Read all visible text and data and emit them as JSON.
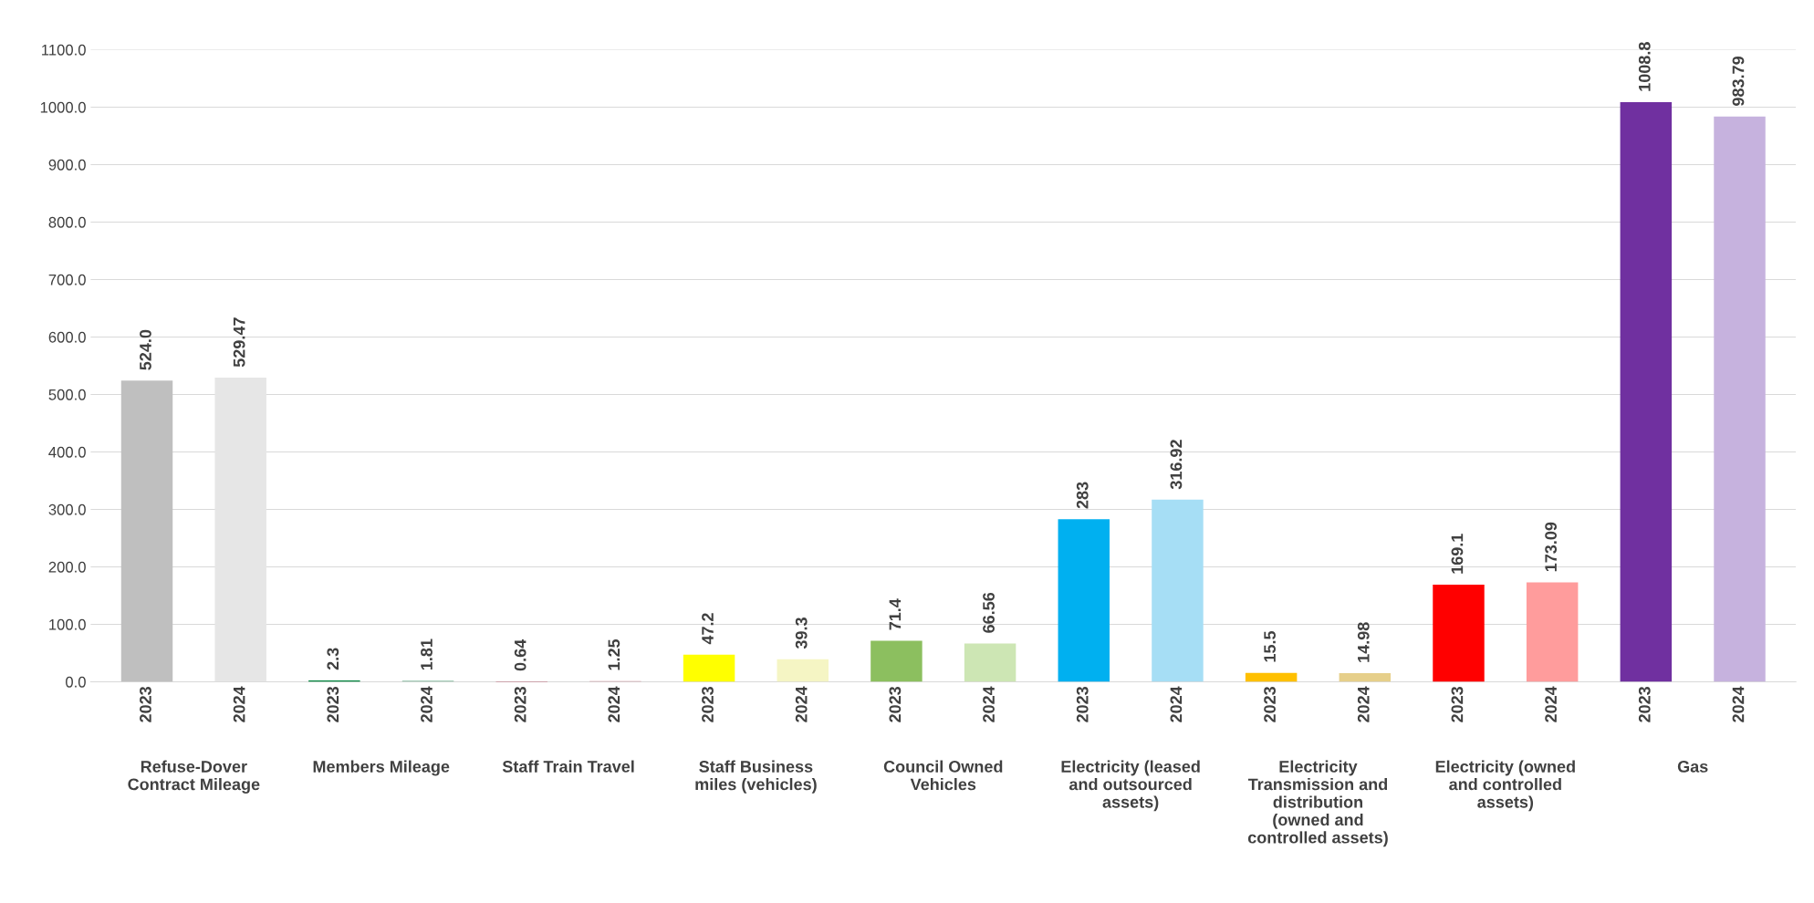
{
  "chart_data": {
    "type": "bar",
    "categories": [
      "2023",
      "2024",
      "2023",
      "2024",
      "2023",
      "2024",
      "2023",
      "2024",
      "2023",
      "2024",
      "2023",
      "2024",
      "2023",
      "2024",
      "2023",
      "2024",
      "2023",
      "2024"
    ],
    "values": [
      524.0,
      529.47,
      2.3,
      1.81,
      0.64,
      1.25,
      47.2,
      39.3,
      71.4,
      66.56,
      283,
      316.92,
      15.5,
      14.98,
      169.1,
      173.09,
      1008.8,
      983.79
    ],
    "value_labels": [
      "524.0",
      "529.47",
      "2.3",
      "1.81",
      "0.64",
      "1.25",
      "47.2",
      "39.3",
      "71.4",
      "66.56",
      "283",
      "316.92",
      "15.5",
      "14.98",
      "169.1",
      "173.09",
      "1008.8",
      "983.79"
    ],
    "colors": [
      "#bfbfbf",
      "#e6e6e6",
      "#00843d",
      "#8fbfa6",
      "#a50021",
      "#c98f97",
      "#ffff00",
      "#f5f5c4",
      "#8cbf5f",
      "#cde6b4",
      "#00b0f0",
      "#a6def5",
      "#ffc000",
      "#e6cf8a",
      "#ff0000",
      "#ff9c9c",
      "#7030a0",
      "#c6b2de"
    ],
    "annotations": [
      "Refuse-Dover\nContract Mileage",
      "Members Mileage",
      "Staff Train Travel",
      "Staff Business\nmiles (vehicles)",
      "Council Owned\nVehicles",
      "Electricity (leased\nand outsourced\nassets)",
      "Electricity\nTransmission and\ndistribution\n(owned and\ncontrolled assets)",
      "Electricity (owned\nand controlled\nassets)",
      "Gas"
    ],
    "ylim": [
      0,
      1100
    ],
    "yticks": [
      {
        "value": 0,
        "label": "0.0"
      },
      {
        "value": 100,
        "label": "100.0"
      },
      {
        "value": 200,
        "label": "200.0"
      },
      {
        "value": 300,
        "label": "300.0"
      },
      {
        "value": 400,
        "label": "400.0"
      },
      {
        "value": 500,
        "label": "500.0"
      },
      {
        "value": 600,
        "label": "600.0"
      },
      {
        "value": 700,
        "label": "700.0"
      },
      {
        "value": 800,
        "label": "800.0"
      },
      {
        "value": 900,
        "label": "900.0"
      },
      {
        "value": 1000,
        "label": "1000.0"
      },
      {
        "value": 1100,
        "label": "1100.0"
      }
    ],
    "grid": "y"
  }
}
